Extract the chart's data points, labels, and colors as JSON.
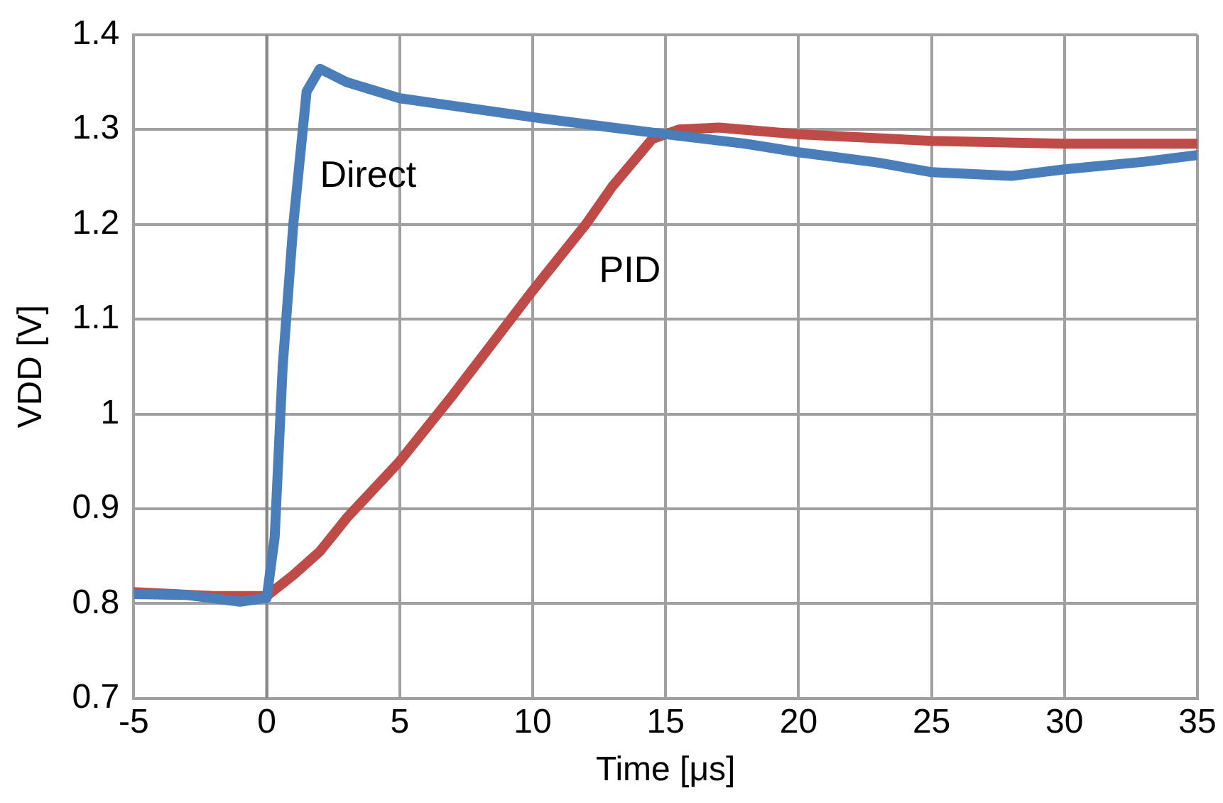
{
  "chart_data": {
    "type": "line",
    "xlabel": "Time [μs]",
    "ylabel": "VDD [V]",
    "xlim": [
      -5,
      35
    ],
    "xticks": [
      -5,
      0,
      5,
      10,
      15,
      20,
      25,
      30,
      35
    ],
    "ylim": [
      0.7,
      1.4
    ],
    "yticks": [
      0.7,
      0.8,
      0.9,
      1,
      1.1,
      1.2,
      1.3,
      1.4
    ],
    "grid": true,
    "legend": false,
    "marker": "none",
    "line_style": "solid",
    "ref_lines": [
      {
        "axis": "x",
        "value": 0,
        "color": "#878787"
      }
    ],
    "series": [
      {
        "name": "Direct",
        "color": "#4a7ebb",
        "x": [
          -5,
          -3,
          -1,
          0,
          0.3,
          0.6,
          1,
          1.5,
          2,
          3,
          5,
          7,
          10,
          13,
          15,
          18,
          20,
          23,
          25,
          28,
          30,
          33,
          35
        ],
        "values": [
          0.81,
          0.809,
          0.802,
          0.806,
          0.87,
          1.05,
          1.2,
          1.34,
          1.364,
          1.35,
          1.333,
          1.325,
          1.313,
          1.302,
          1.295,
          1.285,
          1.276,
          1.265,
          1.255,
          1.251,
          1.258,
          1.266,
          1.273
        ]
      },
      {
        "name": "PID",
        "color": "#be4b48",
        "x": [
          -5,
          -2,
          0,
          1,
          2,
          3,
          5,
          7,
          10,
          12,
          13,
          14.5,
          15.5,
          17,
          20,
          25,
          30,
          35
        ],
        "values": [
          0.812,
          0.808,
          0.808,
          0.83,
          0.855,
          0.89,
          0.95,
          1.02,
          1.13,
          1.2,
          1.24,
          1.29,
          1.3,
          1.302,
          1.295,
          1.288,
          1.285,
          1.285
        ]
      }
    ]
  }
}
